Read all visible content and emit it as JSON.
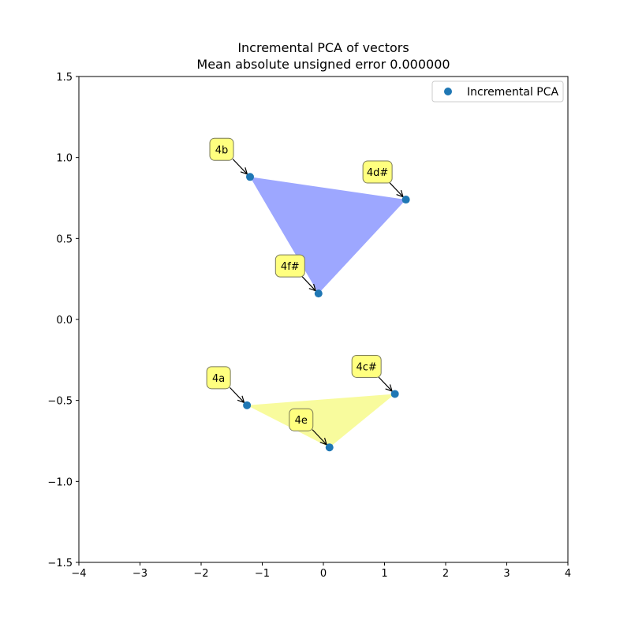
{
  "chart_data": {
    "type": "scatter",
    "title": "Incremental PCA of vectors",
    "subtitle": "Mean absolute unsigned error 0.000000",
    "xlim": [
      -4,
      4
    ],
    "ylim": [
      -1.5,
      1.5
    ],
    "xticks": [
      "−4",
      "−3",
      "−2",
      "−1",
      "0",
      "1",
      "2",
      "3",
      "4"
    ],
    "yticks": [
      "−1.5",
      "−1.0",
      "−0.5",
      "0.0",
      "0.5",
      "1.0",
      "1.5"
    ],
    "xtick_values": [
      -4,
      -3,
      -2,
      -1,
      0,
      1,
      2,
      3,
      4
    ],
    "ytick_values": [
      -1.5,
      -1.0,
      -0.5,
      0.0,
      0.5,
      1.0,
      1.5
    ],
    "grid": false,
    "legend": {
      "position": "top-right",
      "entries": [
        "Incremental PCA"
      ]
    },
    "series": [
      {
        "name": "Incremental PCA",
        "color": "#1f77b4",
        "points": [
          {
            "label": "4a",
            "x": -1.25,
            "y": -0.53
          },
          {
            "label": "4b",
            "x": -1.2,
            "y": 0.88
          },
          {
            "label": "4c#",
            "x": 1.17,
            "y": -0.46
          },
          {
            "label": "4d#",
            "x": 1.35,
            "y": 0.74
          },
          {
            "label": "4e",
            "x": 0.1,
            "y": -0.79
          },
          {
            "label": "4f#",
            "x": -0.08,
            "y": 0.16
          }
        ]
      }
    ],
    "triangles": [
      {
        "vertices": [
          "4b",
          "4d#",
          "4f#"
        ],
        "color": "#9da7ff"
      },
      {
        "vertices": [
          "4a",
          "4c#",
          "4e"
        ],
        "color": "#f8fb9d"
      }
    ]
  }
}
